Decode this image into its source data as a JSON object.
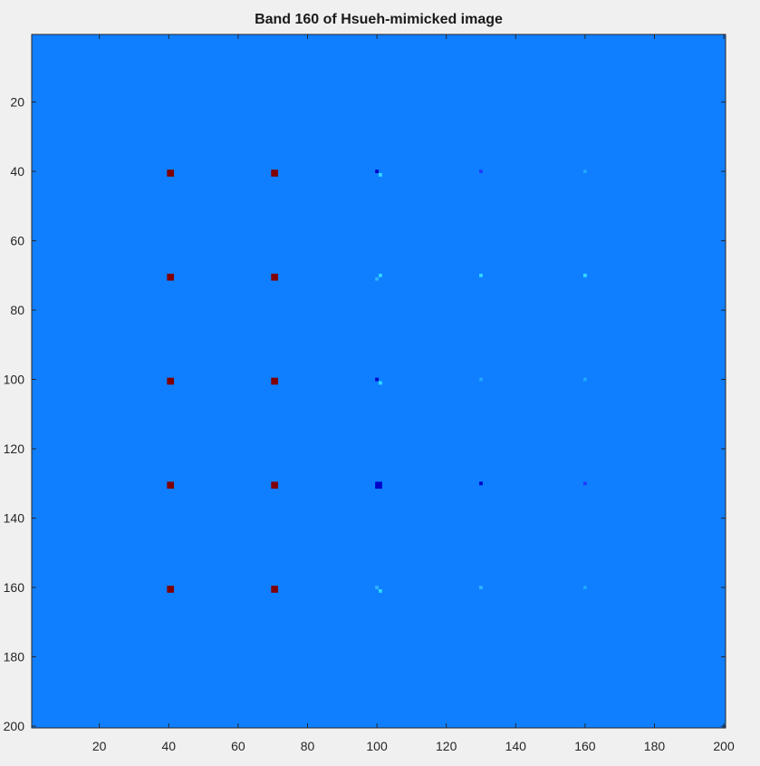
{
  "chart_data": {
    "type": "heatmap",
    "title": "Band 160 of Hsueh-mimicked image",
    "xlabel": "",
    "ylabel": "",
    "xlim": [
      0.5,
      200.5
    ],
    "ylim": [
      0.5,
      200.5
    ],
    "y_direction": "reverse",
    "grid": false,
    "xticks": [
      20,
      40,
      60,
      80,
      100,
      120,
      140,
      160,
      180,
      200
    ],
    "yticks": [
      20,
      40,
      60,
      80,
      100,
      120,
      140,
      160,
      180,
      200
    ],
    "colormap": "jet",
    "background_color": "#0f7fff",
    "colors": {
      "dark_red": "#800000",
      "dark_blue": "#0000c8",
      "blue": "#1f3bff",
      "light_cyan": "#30d8ff",
      "cyan": "#2fb3ff",
      "faint_cyan": "#1ea6ff"
    },
    "points": [
      {
        "x": 40,
        "y": 40,
        "size": 2,
        "color": "dark_red"
      },
      {
        "x": 70,
        "y": 40,
        "size": 2,
        "color": "dark_red"
      },
      {
        "x": 100,
        "y": 40,
        "size": 1,
        "color": "dark_blue"
      },
      {
        "x": 101,
        "y": 41,
        "size": 1,
        "color": "light_cyan"
      },
      {
        "x": 130,
        "y": 40,
        "size": 1,
        "color": "blue"
      },
      {
        "x": 160,
        "y": 40,
        "size": 1,
        "color": "faint_cyan"
      },
      {
        "x": 40,
        "y": 70,
        "size": 2,
        "color": "dark_red"
      },
      {
        "x": 70,
        "y": 70,
        "size": 2,
        "color": "dark_red"
      },
      {
        "x": 101,
        "y": 70,
        "size": 1,
        "color": "light_cyan"
      },
      {
        "x": 100,
        "y": 71,
        "size": 1,
        "color": "cyan"
      },
      {
        "x": 130,
        "y": 70,
        "size": 1,
        "color": "light_cyan"
      },
      {
        "x": 160,
        "y": 70,
        "size": 1,
        "color": "light_cyan"
      },
      {
        "x": 40,
        "y": 100,
        "size": 2,
        "color": "dark_red"
      },
      {
        "x": 70,
        "y": 100,
        "size": 2,
        "color": "dark_red"
      },
      {
        "x": 100,
        "y": 100,
        "size": 1,
        "color": "dark_blue"
      },
      {
        "x": 101,
        "y": 101,
        "size": 1,
        "color": "light_cyan"
      },
      {
        "x": 130,
        "y": 100,
        "size": 1,
        "color": "faint_cyan"
      },
      {
        "x": 160,
        "y": 100,
        "size": 1,
        "color": "faint_cyan"
      },
      {
        "x": 40,
        "y": 130,
        "size": 2,
        "color": "dark_red"
      },
      {
        "x": 70,
        "y": 130,
        "size": 2,
        "color": "dark_red"
      },
      {
        "x": 100,
        "y": 130,
        "size": 2,
        "color": "dark_blue"
      },
      {
        "x": 130,
        "y": 130,
        "size": 1,
        "color": "dark_blue"
      },
      {
        "x": 160,
        "y": 130,
        "size": 1,
        "color": "blue"
      },
      {
        "x": 40,
        "y": 160,
        "size": 2,
        "color": "dark_red"
      },
      {
        "x": 70,
        "y": 160,
        "size": 2,
        "color": "dark_red"
      },
      {
        "x": 100,
        "y": 160,
        "size": 1,
        "color": "cyan"
      },
      {
        "x": 101,
        "y": 161,
        "size": 1,
        "color": "light_cyan"
      },
      {
        "x": 130,
        "y": 160,
        "size": 1,
        "color": "cyan"
      },
      {
        "x": 160,
        "y": 160,
        "size": 1,
        "color": "faint_cyan"
      }
    ]
  }
}
